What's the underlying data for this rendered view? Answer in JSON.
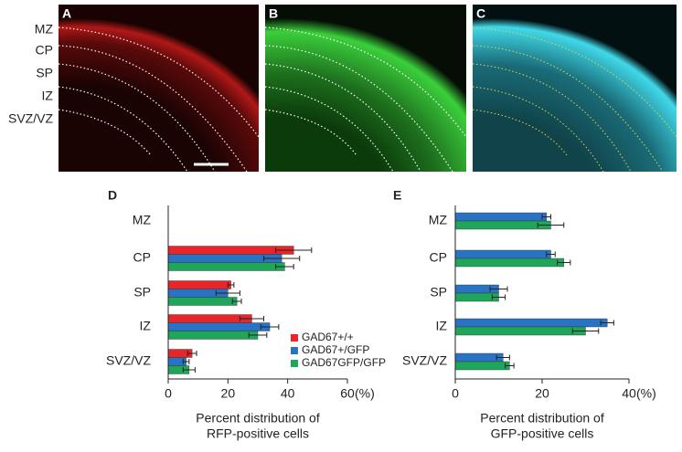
{
  "image_panels": {
    "labels": [
      "A",
      "B",
      "C"
    ],
    "layers": [
      "MZ",
      "CP",
      "SP",
      "IZ",
      "SVZ/VZ"
    ]
  },
  "chart_data": [
    {
      "type": "bar",
      "orientation": "horizontal",
      "panel": "D",
      "categories": [
        "MZ",
        "CP",
        "SP",
        "IZ",
        "SVZ/VZ"
      ],
      "series": [
        {
          "name": "GAD67+/+",
          "color": "#e8262a",
          "values": [
            0,
            42,
            21,
            28,
            8
          ],
          "errors": [
            0,
            6,
            1,
            4,
            1.5
          ]
        },
        {
          "name": "GAD67+/GFP",
          "color": "#2a72c4",
          "values": [
            0,
            38,
            20,
            34,
            6
          ],
          "errors": [
            0,
            6,
            4,
            3,
            1
          ]
        },
        {
          "name": "GAD67GFP/GFP",
          "color": "#1fa65a",
          "values": [
            0,
            39,
            23,
            30,
            7
          ],
          "errors": [
            0,
            3,
            1.5,
            3,
            2
          ]
        }
      ],
      "xlim": [
        0,
        60
      ],
      "xticks": [
        0,
        20,
        40,
        60
      ],
      "x_unit": "(%)",
      "x_label": [
        "Percent distribution of",
        "RFP-positive cells"
      ]
    },
    {
      "type": "bar",
      "orientation": "horizontal",
      "panel": "E",
      "categories": [
        "MZ",
        "CP",
        "SP",
        "IZ",
        "SVZ/VZ"
      ],
      "series": [
        {
          "color": "#2a72c4",
          "values": [
            21,
            22,
            10,
            35,
            11
          ],
          "errors": [
            1,
            1,
            2,
            1.5,
            1.5
          ]
        },
        {
          "color": "#1fa65a",
          "values": [
            22,
            25,
            10,
            30,
            12.5
          ],
          "errors": [
            3,
            1.5,
            1.5,
            3,
            1
          ]
        }
      ],
      "xlim": [
        0,
        40
      ],
      "xticks": [
        0,
        20,
        40
      ],
      "x_unit": "(%)",
      "x_label": [
        "Percent distribution of",
        "GFP-positive cells"
      ]
    }
  ]
}
